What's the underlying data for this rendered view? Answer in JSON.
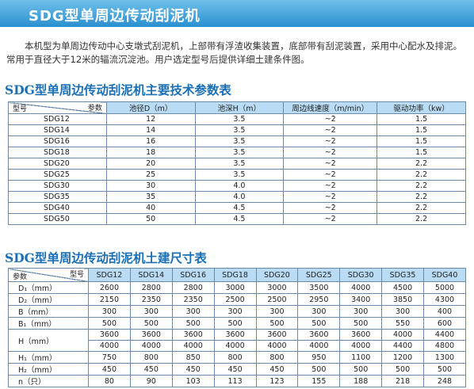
{
  "title": "SDG型单周边传动刮泥机",
  "intro": "本机型为单周边传动中心支墩式刮泥机，上部带有浮渣收集装置，底部带有刮泥装置，采用中心配水及排泥。常用于直径大于12米的辐流沉淀池。用户选定型号后提供详细土建条件图。",
  "table1": {
    "title": "SDG型单周边传动刮泥机主要技术参数表",
    "corner_top": "参数",
    "corner_bottom": "型号",
    "headers": [
      "池径D（m）",
      "池深H（m）",
      "周边线速度（m/min）",
      "驱动功率（kw）"
    ],
    "rows": [
      [
        "SDG12",
        "12",
        "3.5",
        "~2",
        "1.5"
      ],
      [
        "SDG14",
        "14",
        "3.5",
        "~2",
        "1.5"
      ],
      [
        "SDG16",
        "16",
        "3.5",
        "~2",
        "1.5"
      ],
      [
        "SDG18",
        "18",
        "3.5",
        "~2",
        "1.5"
      ],
      [
        "SDG20",
        "20",
        "3.5",
        "~2",
        "2.2"
      ],
      [
        "SDG25",
        "25",
        "3.5",
        "~2",
        "2.2"
      ],
      [
        "SDG30",
        "30",
        "4.0",
        "~2",
        "2.2"
      ],
      [
        "SDG35",
        "35",
        "4.0",
        "~2",
        "2.2"
      ],
      [
        "SDG40",
        "40",
        "4.5",
        "~2",
        "2.2"
      ],
      [
        "SDG50",
        "50",
        "4.5",
        "~2",
        "2.2"
      ]
    ]
  },
  "table2": {
    "title": "SDG型单周边传动刮泥机土建尺寸表",
    "corner_top": "型号",
    "corner_bottom": "参数",
    "headers": [
      "SDG12",
      "SDG14",
      "SDG16",
      "SDG18",
      "SDG20",
      "SDG25",
      "SDG30",
      "SDG35",
      "SDG40"
    ],
    "rows": [
      {
        "label": "D₁（mm）",
        "values": [
          "2600",
          "2800",
          "2800",
          "3000",
          "3000",
          "3500",
          "4000",
          "4500",
          "5000"
        ]
      },
      {
        "label": "D₂（mm）",
        "values": [
          "2150",
          "2350",
          "2350",
          "2500",
          "2500",
          "2950",
          "3400",
          "3850",
          "4300"
        ]
      },
      {
        "label": "B（mm）",
        "values": [
          "300",
          "300",
          "300",
          "300",
          "300",
          "300",
          "300",
          "300",
          "400"
        ]
      },
      {
        "label": "B₁（mm）",
        "values": [
          "500",
          "500",
          "500",
          "500",
          "500",
          "500",
          "500",
          "550",
          "600"
        ]
      },
      {
        "label": "H（mm）",
        "values": [
          "3600",
          "3600",
          "3600",
          "3600",
          "3600",
          "3600",
          "3600",
          "4000",
          "4400"
        ],
        "values2": [
          "4000",
          "4000",
          "4000",
          "4000",
          "4000",
          "4000",
          "4000",
          "4400",
          "4800"
        ]
      },
      {
        "label": "H₁（mm）",
        "values": [
          "750",
          "800",
          "850",
          "800",
          "800",
          "950",
          "1100",
          "1200",
          "1300"
        ]
      },
      {
        "label": "H₂（mm）",
        "values": [
          "450",
          "450",
          "450",
          "450",
          "450",
          "500",
          "500",
          "500",
          "500"
        ]
      },
      {
        "label": "n（只）",
        "values": [
          "80",
          "90",
          "103",
          "113",
          "123",
          "155",
          "188",
          "218",
          "248"
        ]
      }
    ]
  }
}
